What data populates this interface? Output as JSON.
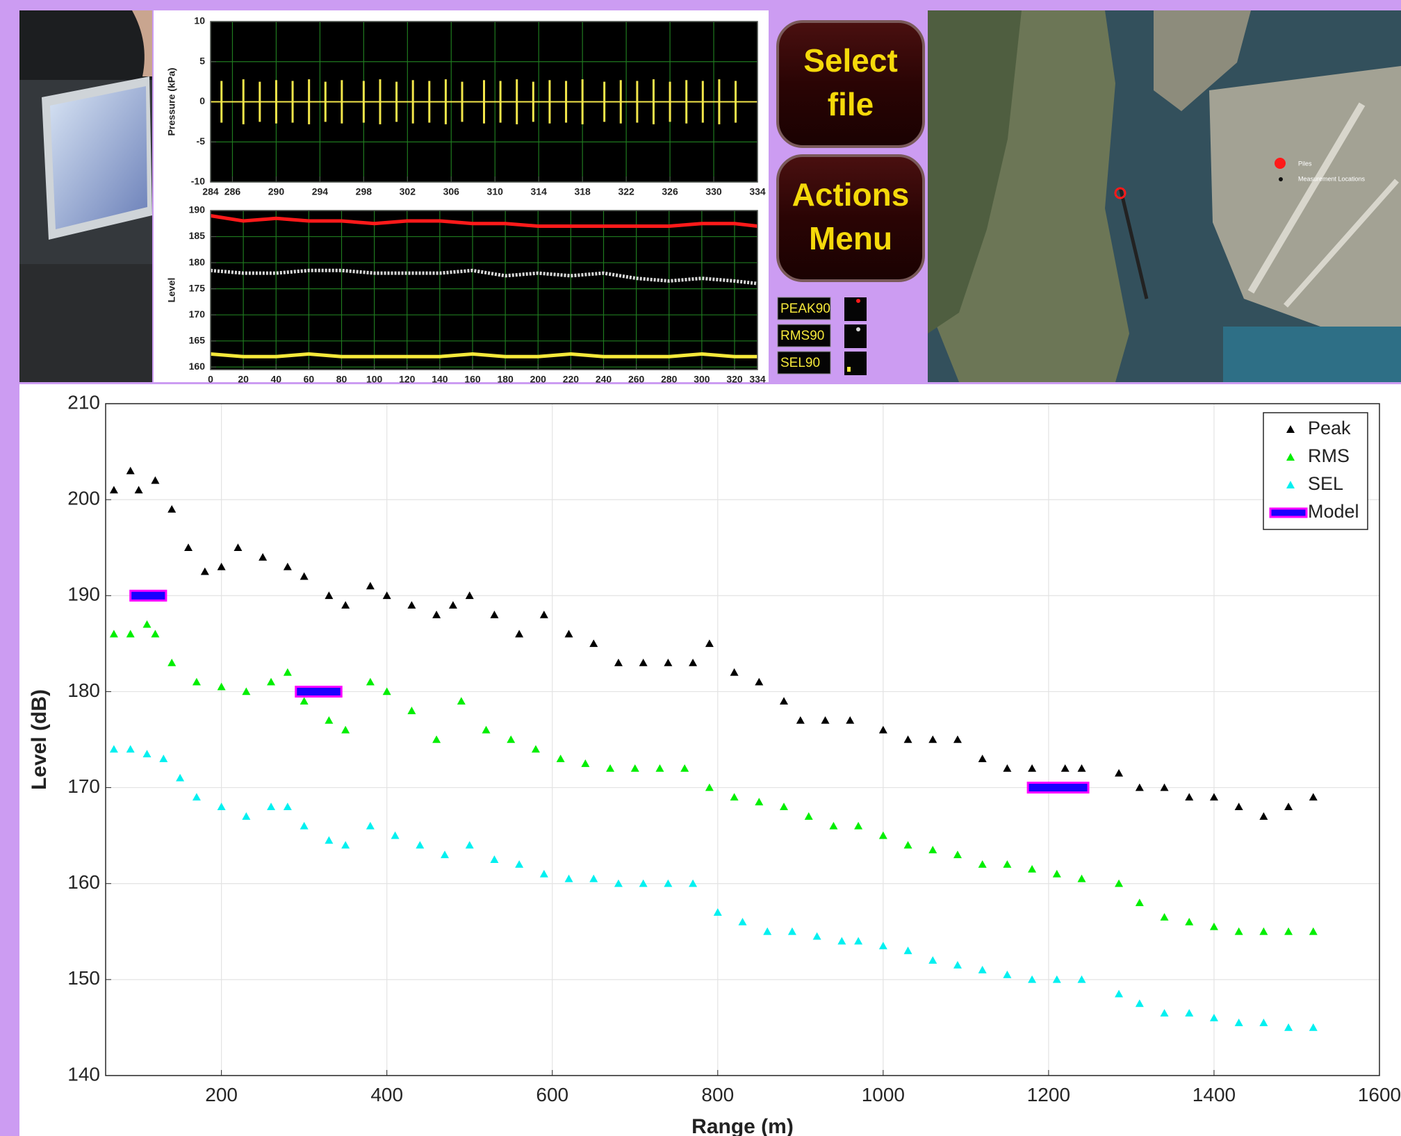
{
  "ui": {
    "buttons": [
      [
        "Select",
        "file"
      ],
      [
        "Actions",
        "Menu"
      ]
    ]
  },
  "map": {
    "legend": [
      "Piles",
      "Measurement Locations"
    ]
  },
  "chart_data": [
    {
      "type": "spike",
      "ylabel": "Pressure (kPa)",
      "color": "#f2e64a",
      "xlim": [
        284,
        334
      ],
      "xticks": [
        284,
        286,
        290,
        294,
        298,
        302,
        306,
        310,
        314,
        318,
        322,
        326,
        330,
        334
      ],
      "ylim": [
        -10,
        10
      ],
      "yticks": [
        -10,
        -5,
        0,
        5,
        10
      ],
      "grid": true,
      "x": [
        285,
        287,
        288.5,
        290,
        291.5,
        293,
        294.5,
        296,
        298,
        299.5,
        301,
        302.5,
        304,
        305.5,
        307,
        309,
        310.5,
        312,
        313.5,
        315,
        316.5,
        318,
        320,
        321.5,
        323,
        324.5,
        326,
        327.5,
        329,
        330.5,
        332
      ],
      "values": [
        2.6,
        2.8,
        2.5,
        2.7,
        2.6,
        2.8,
        2.5,
        2.7,
        2.6,
        2.8,
        2.5,
        2.7,
        2.6,
        2.8,
        2.5,
        2.7,
        2.6,
        2.8,
        2.5,
        2.7,
        2.6,
        2.8,
        2.5,
        2.7,
        2.6,
        2.8,
        2.5,
        2.7,
        2.6,
        2.8,
        2.6
      ]
    },
    {
      "type": "line",
      "ylabel": "Level",
      "xlim": [
        0,
        334
      ],
      "xticks": [
        0,
        20,
        40,
        60,
        80,
        100,
        120,
        140,
        160,
        180,
        200,
        220,
        240,
        260,
        280,
        300,
        320,
        334
      ],
      "ylim": [
        159.5,
        190
      ],
      "yticks": [
        160,
        165,
        170,
        175,
        180,
        185,
        190
      ],
      "grid": true,
      "x": [
        0,
        20,
        40,
        60,
        80,
        100,
        120,
        140,
        160,
        180,
        200,
        220,
        240,
        260,
        280,
        300,
        320,
        334
      ],
      "series": [
        {
          "name": "PEAK90",
          "color": "#ff1a1a",
          "values": [
            189,
            188,
            188.5,
            188,
            188,
            187.5,
            188,
            188,
            187.5,
            187.5,
            187,
            187,
            187,
            187,
            187,
            187.5,
            187.5,
            187
          ]
        },
        {
          "name": "RMS90",
          "color": "#d9d9d9",
          "values": [
            178.5,
            178,
            178,
            178.5,
            178.5,
            178,
            178,
            178,
            178.5,
            177.5,
            178,
            177.5,
            178,
            177,
            176.5,
            177,
            176.5,
            176
          ]
        },
        {
          "name": "SEL90",
          "color": "#f5e83a",
          "values": [
            162.5,
            162,
            162,
            162.5,
            162,
            162,
            162,
            162,
            162.5,
            162,
            162,
            162.5,
            162,
            162,
            162,
            162.5,
            162,
            162
          ]
        }
      ]
    },
    {
      "type": "scatter",
      "xlabel": "Range (m)",
      "ylabel": "Level (dB)",
      "xlim": [
        60,
        1600
      ],
      "xticks": [
        200,
        400,
        600,
        800,
        1000,
        1200,
        1400,
        1600
      ],
      "ylim": [
        140,
        210
      ],
      "yticks": [
        140,
        150,
        160,
        170,
        180,
        190,
        200,
        210
      ],
      "grid": true,
      "legend": "upper right",
      "series": [
        {
          "name": "Peak",
          "color": "#000000",
          "x": [
            70,
            90,
            100,
            120,
            140,
            160,
            180,
            200,
            220,
            250,
            280,
            300,
            330,
            350,
            380,
            400,
            430,
            460,
            480,
            500,
            530,
            560,
            590,
            620,
            650,
            680,
            710,
            740,
            770,
            790,
            820,
            850,
            880,
            900,
            930,
            960,
            1000,
            1030,
            1060,
            1090,
            1120,
            1150,
            1180,
            1220,
            1240,
            1285,
            1310,
            1340,
            1370,
            1400,
            1430,
            1460,
            1490,
            1520
          ],
          "values": [
            201,
            203,
            201,
            202,
            199,
            195,
            192.5,
            193,
            195,
            194,
            193,
            192,
            190,
            189,
            191,
            190,
            189,
            188,
            189,
            190,
            188,
            186,
            188,
            186,
            185,
            183,
            183,
            183,
            183,
            185,
            182,
            181,
            179,
            177,
            177,
            177,
            176,
            175,
            175,
            175,
            173,
            172,
            172,
            172,
            172,
            171.5,
            170,
            170,
            169,
            169,
            168,
            167,
            168,
            169
          ]
        },
        {
          "name": "RMS",
          "color": "#00ee00",
          "x": [
            70,
            90,
            110,
            120,
            140,
            170,
            200,
            230,
            260,
            280,
            300,
            330,
            350,
            380,
            400,
            430,
            460,
            490,
            520,
            550,
            580,
            610,
            640,
            670,
            700,
            730,
            760,
            790,
            820,
            850,
            880,
            910,
            940,
            970,
            1000,
            1030,
            1060,
            1090,
            1120,
            1150,
            1180,
            1210,
            1240,
            1285,
            1310,
            1340,
            1370,
            1400,
            1430,
            1460,
            1490,
            1520
          ],
          "values": [
            186,
            186,
            187,
            186,
            183,
            181,
            180.5,
            180,
            181,
            182,
            179,
            177,
            176,
            181,
            180,
            178,
            175,
            179,
            176,
            175,
            174,
            173,
            172.5,
            172,
            172,
            172,
            172,
            170,
            169,
            168.5,
            168,
            167,
            166,
            166,
            165,
            164,
            163.5,
            163,
            162,
            162,
            161.5,
            161,
            160.5,
            160,
            158,
            156.5,
            156,
            155.5,
            155,
            155,
            155,
            155
          ]
        },
        {
          "name": "SEL",
          "color": "#00f0f0",
          "x": [
            70,
            90,
            110,
            130,
            150,
            170,
            200,
            230,
            260,
            280,
            300,
            330,
            350,
            380,
            410,
            440,
            470,
            500,
            530,
            560,
            590,
            620,
            650,
            680,
            710,
            740,
            770,
            800,
            830,
            860,
            890,
            920,
            950,
            970,
            1000,
            1030,
            1060,
            1090,
            1120,
            1150,
            1180,
            1210,
            1240,
            1285,
            1310,
            1340,
            1370,
            1400,
            1430,
            1460,
            1490,
            1520
          ],
          "values": [
            174,
            174,
            173.5,
            173,
            171,
            169,
            168,
            167,
            168,
            168,
            166,
            164.5,
            164,
            166,
            165,
            164,
            163,
            164,
            162.5,
            162,
            161,
            160.5,
            160.5,
            160,
            160,
            160,
            160,
            157,
            156,
            155,
            155,
            154.5,
            154,
            154,
            153.5,
            153,
            152,
            151.5,
            151,
            150.5,
            150,
            150,
            150,
            148.5,
            147.5,
            146.5,
            146.5,
            146,
            145.5,
            145.5,
            145,
            145
          ]
        }
      ],
      "model_segments": {
        "name": "Model",
        "color": "#1a00ff",
        "edge_color": "#ff00ff",
        "x_start": [
          90,
          290,
          1175
        ],
        "x_end": [
          133,
          345,
          1248
        ],
        "values": [
          190,
          180,
          170
        ]
      }
    }
  ]
}
